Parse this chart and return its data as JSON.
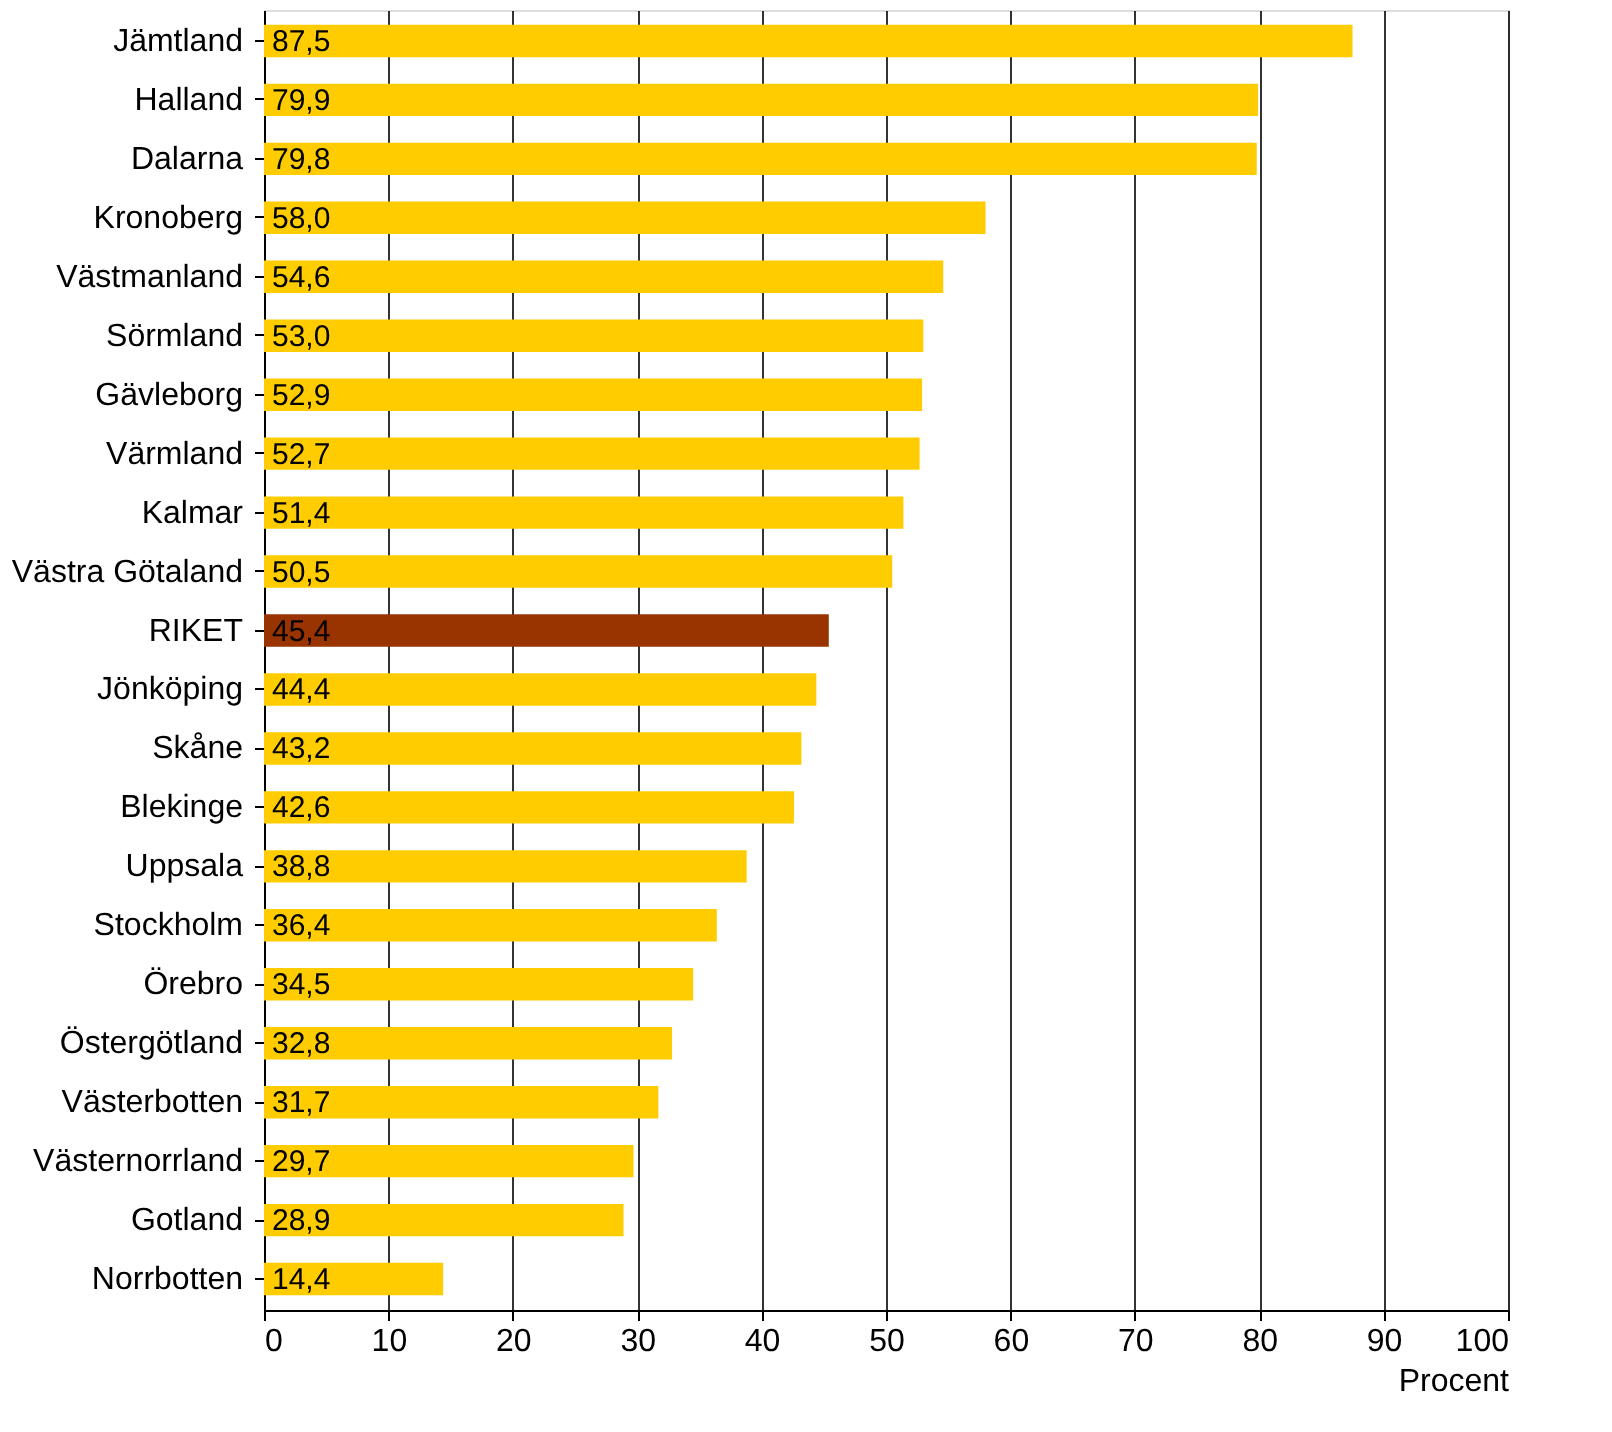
{
  "chart_data": {
    "type": "bar",
    "orientation": "horizontal",
    "xlabel": "Procent",
    "categories": [
      "Jämtland",
      "Halland",
      "Dalarna",
      "Kronoberg",
      "Västmanland",
      "Sörmland",
      "Gävleborg",
      "Värmland",
      "Kalmar",
      "Västra Götaland",
      "RIKET",
      "Jönköping",
      "Skåne",
      "Blekinge",
      "Uppsala",
      "Stockholm",
      "Örebro",
      "Östergötland",
      "Västerbotten",
      "Västernorrland",
      "Gotland",
      "Norrbotten"
    ],
    "values": [
      87.5,
      79.9,
      79.8,
      58.0,
      54.6,
      53.0,
      52.9,
      52.7,
      51.4,
      50.5,
      45.4,
      44.4,
      43.2,
      42.6,
      38.8,
      36.4,
      34.5,
      32.8,
      31.7,
      29.7,
      28.9,
      14.4
    ],
    "value_labels": [
      "87,5",
      "79,9",
      "79,8",
      "58,0",
      "54,6",
      "53,0",
      "52,9",
      "52,7",
      "51,4",
      "50,5",
      "45,4",
      "44,4",
      "43,2",
      "42,6",
      "38,8",
      "36,4",
      "34,5",
      "32,8",
      "31,7",
      "29,7",
      "28,9",
      "14,4"
    ],
    "colors": [
      "#ffcc00",
      "#ffcc00",
      "#ffcc00",
      "#ffcc00",
      "#ffcc00",
      "#ffcc00",
      "#ffcc00",
      "#ffcc00",
      "#ffcc00",
      "#ffcc00",
      "#993300",
      "#ffcc00",
      "#ffcc00",
      "#ffcc00",
      "#ffcc00",
      "#ffcc00",
      "#ffcc00",
      "#ffcc00",
      "#ffcc00",
      "#ffcc00",
      "#ffcc00",
      "#ffcc00"
    ],
    "xlim": [
      0,
      100
    ],
    "xticks": [
      0,
      10,
      20,
      30,
      40,
      50,
      60,
      70,
      80,
      90,
      100
    ],
    "grid": "x"
  }
}
